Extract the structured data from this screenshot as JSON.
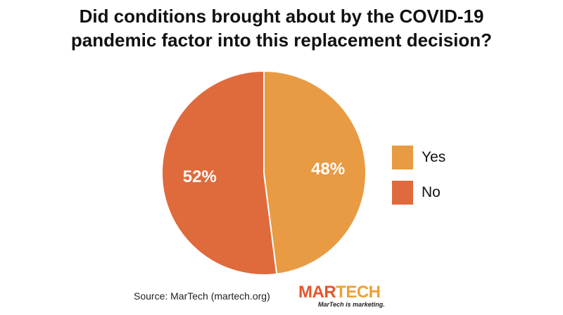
{
  "chart_data": {
    "type": "pie",
    "title_lines": [
      "Did conditions brought about by the COVID-19",
      "pandemic factor into this replacement decision?"
    ],
    "slices": [
      {
        "name": "Yes",
        "value": 48,
        "label": "48%",
        "color": "#e89b42"
      },
      {
        "name": "No",
        "value": 52,
        "label": "52%",
        "color": "#df6a3c"
      }
    ],
    "legend": {
      "placement": "right",
      "entries": [
        "Yes",
        "No"
      ]
    },
    "slice_border_color": "#ffffff"
  },
  "footer": {
    "source": "Source: MarTech (martech.org)",
    "logo_mar": "MAR",
    "logo_tech": "TECH",
    "logo_tagline": "MarTech is marketing."
  }
}
